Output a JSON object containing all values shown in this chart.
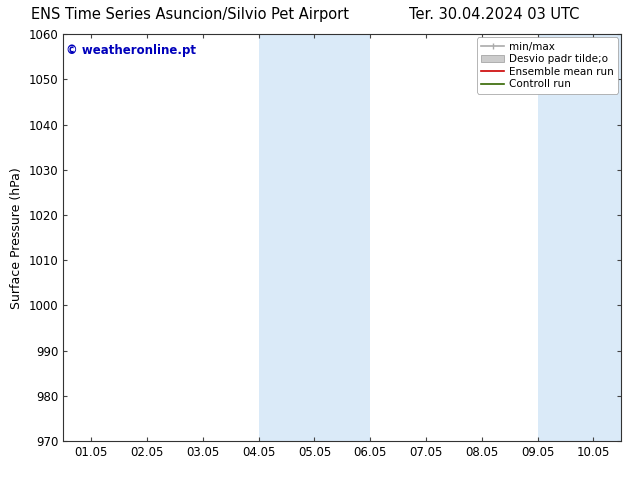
{
  "title_left": "ENS Time Series Asuncion/Silvio Pet Airport",
  "title_right": "Ter. 30.04.2024 03 UTC",
  "ylabel": "Surface Pressure (hPa)",
  "ylim": [
    970,
    1060
  ],
  "yticks": [
    970,
    980,
    990,
    1000,
    1010,
    1020,
    1030,
    1040,
    1050,
    1060
  ],
  "xtick_labels": [
    "01.05",
    "02.05",
    "03.05",
    "04.05",
    "05.05",
    "06.05",
    "07.05",
    "08.05",
    "09.05",
    "10.05"
  ],
  "xtick_positions": [
    0,
    1,
    2,
    3,
    4,
    5,
    6,
    7,
    8,
    9
  ],
  "shaded_regions": [
    {
      "xmin": 3.0,
      "xmax": 5.0
    },
    {
      "xmin": 8.0,
      "xmax": 9.5
    }
  ],
  "shaded_color": "#daeaf8",
  "background_color": "#ffffff",
  "watermark_text": "© weatheronline.pt",
  "watermark_color": "#0000bb",
  "title_fontsize": 10.5,
  "tick_fontsize": 8.5,
  "ylabel_fontsize": 9,
  "watermark_fontsize": 8.5
}
